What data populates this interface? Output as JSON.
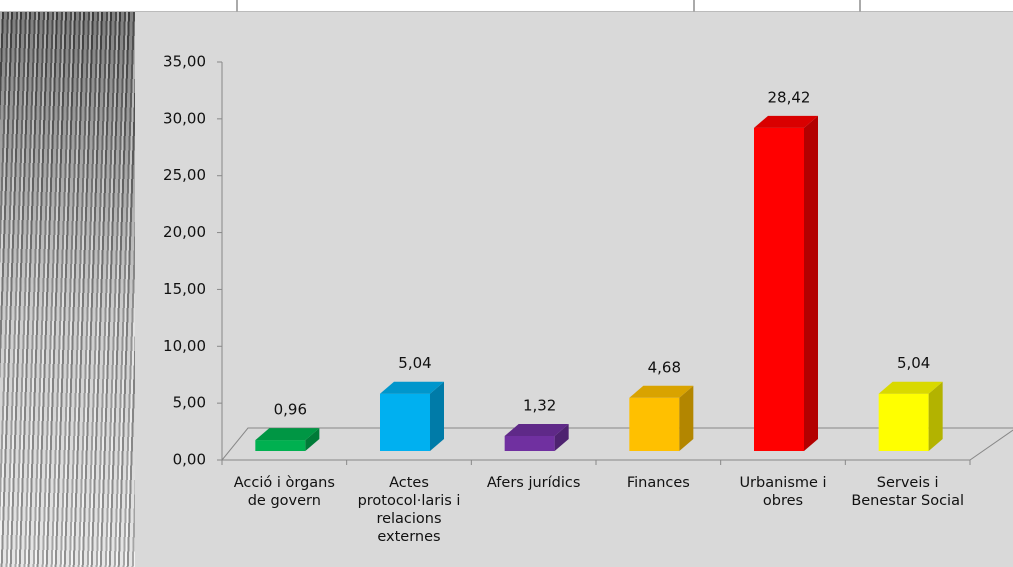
{
  "chart_data": {
    "type": "bar3d",
    "categories": [
      "Acció i òrgans de govern",
      "Actes protocol·laris i relacions externes",
      "Afers jurídics",
      "Finances",
      "Urbanisme i obres",
      "Serveis i Benestar Social"
    ],
    "values": [
      0.96,
      5.04,
      1.32,
      4.68,
      28.42,
      5.04
    ],
    "value_labels": [
      "0,96",
      "5,04",
      "1,32",
      "4,68",
      "28,42",
      "5,04"
    ],
    "colors": [
      "#00b050",
      "#00b0f0",
      "#7030a0",
      "#ffc000",
      "#ff0000",
      "#ffff00"
    ],
    "ylim": [
      0,
      35
    ],
    "yticks": [
      {
        "value": 0,
        "label": "0,00"
      },
      {
        "value": 5,
        "label": "5,00"
      },
      {
        "value": 10,
        "label": "10,00"
      },
      {
        "value": 15,
        "label": "15,00"
      },
      {
        "value": 20,
        "label": "20,00"
      },
      {
        "value": 25,
        "label": "25,00"
      },
      {
        "value": 30,
        "label": "30,00"
      },
      {
        "value": 35,
        "label": "35,00"
      }
    ]
  }
}
